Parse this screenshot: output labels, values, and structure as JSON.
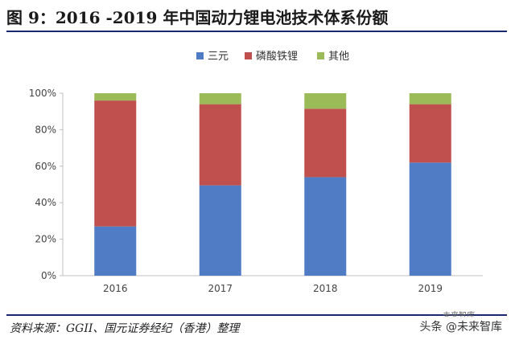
{
  "page": {
    "title": "图 9：2016 -2019 年中国动力锂电池技术体系份额",
    "source": "资料来源：GGII、国元证券经纪（香港）整理",
    "watermark": "头条 @未来智库",
    "watermark_small": "未来智库"
  },
  "chart_data": {
    "type": "bar",
    "stacked": true,
    "title": "",
    "xlabel": "",
    "ylabel": "",
    "categories": [
      "2016",
      "2017",
      "2018",
      "2019"
    ],
    "ylim": [
      0,
      100
    ],
    "yticks": [
      "0%",
      "20%",
      "40%",
      "60%",
      "80%",
      "100%"
    ],
    "grid": false,
    "legend_position": "top",
    "series": [
      {
        "name": "三元",
        "color": "#4f7cc4",
        "values": [
          27,
          49.5,
          54,
          62
        ]
      },
      {
        "name": "磷酸铁锂",
        "color": "#c0504d",
        "values": [
          69,
          44.5,
          37.5,
          32
        ]
      },
      {
        "name": "其他",
        "color": "#9bbb59",
        "values": [
          4,
          6,
          8.5,
          6
        ]
      }
    ]
  }
}
